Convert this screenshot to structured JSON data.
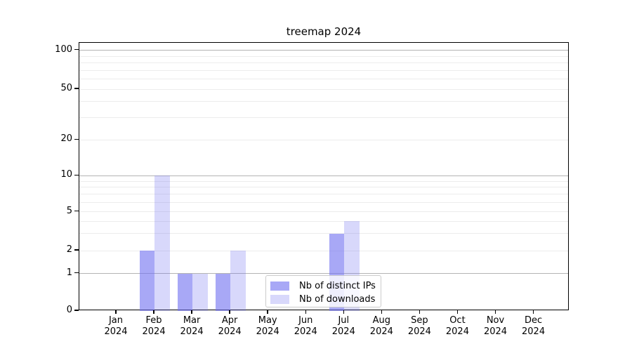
{
  "title": "treemap 2024",
  "y_axis": {
    "tick_labels": [
      "0",
      "1",
      "2",
      "5",
      "10",
      "20",
      "50",
      "100"
    ]
  },
  "x_axis": {
    "months": [
      "Jan",
      "Feb",
      "Mar",
      "Apr",
      "May",
      "Jun",
      "Jul",
      "Aug",
      "Sep",
      "Oct",
      "Nov",
      "Dec"
    ],
    "year": "2024"
  },
  "chart_data": {
    "type": "bar",
    "title": "treemap 2024",
    "categories": [
      "Jan 2024",
      "Feb 2024",
      "Mar 2024",
      "Apr 2024",
      "May 2024",
      "Jun 2024",
      "Jul 2024",
      "Aug 2024",
      "Sep 2024",
      "Oct 2024",
      "Nov 2024",
      "Dec 2024"
    ],
    "series": [
      {
        "name": "Nb of distinct IPs",
        "color": "rgba(112,112,240,0.61)",
        "swatch_hex": "#a8a8f7",
        "values": [
          0,
          2,
          1,
          1,
          0,
          0,
          3,
          0,
          0,
          0,
          0,
          0
        ]
      },
      {
        "name": "Nb of downloads",
        "color": "rgba(112,112,240,0.27)",
        "swatch_hex": "#d9d9fa",
        "values": [
          0,
          10,
          1,
          2,
          0,
          0,
          4,
          0,
          0,
          0,
          0,
          0
        ]
      }
    ],
    "yscale": "symlog",
    "y_ticks": [
      0,
      1,
      2,
      5,
      10,
      20,
      50,
      100
    ],
    "ylim": [
      0,
      113
    ],
    "grid": true,
    "grid_major_at": [
      1,
      10,
      100
    ],
    "legend_position": "lower center",
    "colors": {
      "grid_major": "#b4b4b4",
      "grid_minor": "#ececec",
      "axis": "#000000"
    }
  }
}
